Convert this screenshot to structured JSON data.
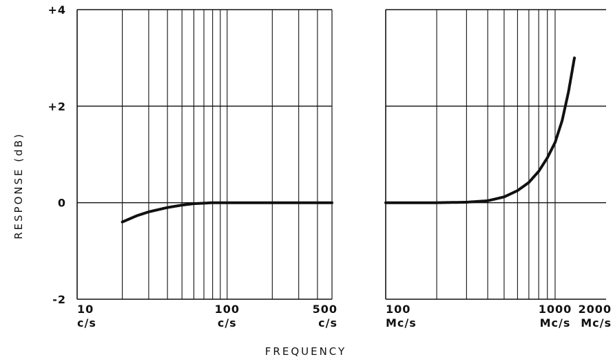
{
  "chart_data": [
    {
      "type": "line",
      "x_scale": "log",
      "xlim": [
        10,
        500
      ],
      "ylim": [
        -2,
        4
      ],
      "grid": true,
      "x_ticks": [
        {
          "value": 10,
          "label": "10",
          "unit": "c/s"
        },
        {
          "value": 100,
          "label": "100",
          "unit": "c/s"
        },
        {
          "value": 500,
          "label": "500",
          "unit": "c/s"
        }
      ],
      "y_ticks": [
        {
          "value": 4,
          "label": "+4"
        },
        {
          "value": 2,
          "label": "+2"
        },
        {
          "value": 0,
          "label": "0"
        },
        {
          "value": -2,
          "label": "-2"
        }
      ],
      "ylabel": "RESPONSE (dB)",
      "series": [
        {
          "x": [
            20,
            25,
            30,
            40,
            50,
            60,
            70,
            80,
            100,
            150,
            200,
            300,
            500
          ],
          "y": [
            -0.4,
            -0.27,
            -0.19,
            -0.1,
            -0.05,
            -0.02,
            -0.01,
            0,
            0,
            0,
            0,
            0,
            0
          ]
        }
      ]
    },
    {
      "type": "line",
      "x_scale": "log",
      "xlim": [
        100,
        2000
      ],
      "ylim": [
        -2,
        4
      ],
      "grid": true,
      "x_ticks": [
        {
          "value": 100,
          "label": "100",
          "unit": "Mc/s"
        },
        {
          "value": 1000,
          "label": "1000",
          "unit": "Mc/s"
        },
        {
          "value": 2000,
          "label": "2000",
          "unit": "Mc/s"
        }
      ],
      "series": [
        {
          "x": [
            100,
            200,
            300,
            400,
            500,
            600,
            700,
            800,
            900,
            1000,
            1100,
            1200,
            1300
          ],
          "y": [
            0,
            0,
            0.01,
            0.04,
            0.12,
            0.25,
            0.42,
            0.65,
            0.93,
            1.25,
            1.7,
            2.3,
            3.0
          ]
        }
      ]
    }
  ],
  "xlabel": "FREQUENCY",
  "colors": {
    "ink": "#111111",
    "background": "#ffffff"
  }
}
